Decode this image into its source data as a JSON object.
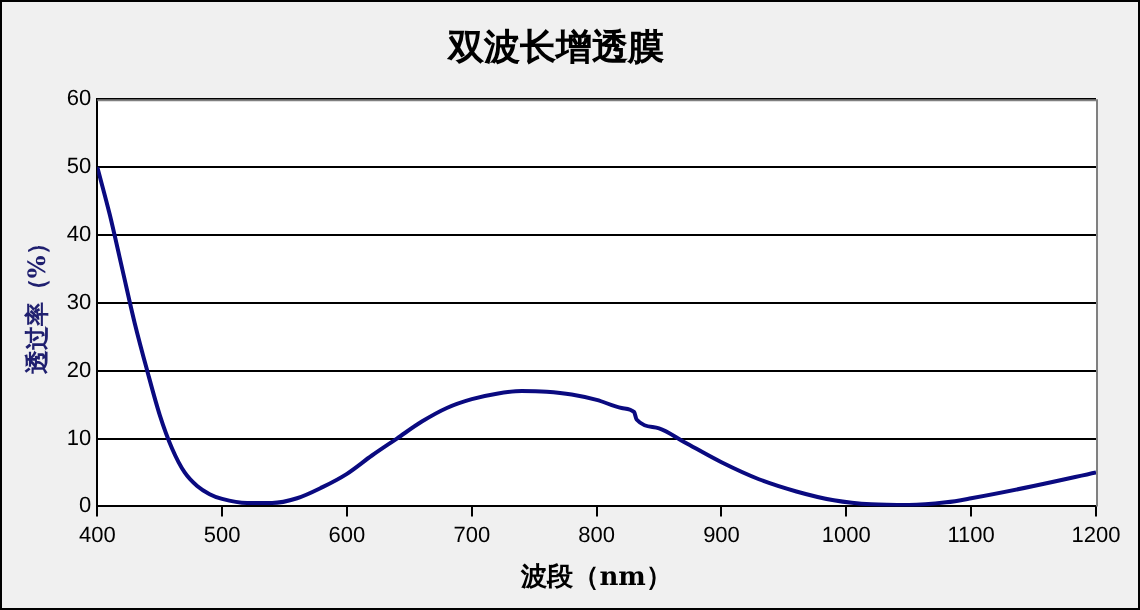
{
  "chart_data": {
    "type": "line",
    "title": "双波长增透膜",
    "xlabel": "波段（nm）",
    "ylabel": "透过率（%）",
    "x": [
      400,
      410,
      420,
      430,
      440,
      450,
      460,
      470,
      480,
      490,
      500,
      520,
      540,
      560,
      580,
      600,
      620,
      640,
      660,
      680,
      700,
      720,
      740,
      760,
      780,
      800,
      820,
      830,
      832,
      850,
      870,
      900,
      930,
      960,
      990,
      1020,
      1050,
      1080,
      1100,
      1150,
      1200
    ],
    "series": [
      {
        "color": "#0a0a80",
        "values": [
          50,
          43,
          35,
          27,
          20,
          13.5,
          8.5,
          5,
          3,
          1.8,
          1.1,
          0.5,
          0.5,
          1.2,
          2.8,
          4.8,
          7.5,
          10,
          12.5,
          14.5,
          15.8,
          16.6,
          17,
          16.9,
          16.5,
          15.7,
          14.5,
          13.9,
          12.8,
          11.5,
          9.5,
          6.5,
          4,
          2.2,
          0.9,
          0.3,
          0.2,
          0.6,
          1.2,
          3,
          5
        ]
      }
    ],
    "xlim": [
      400,
      1200
    ],
    "xticks": [
      400,
      500,
      600,
      700,
      800,
      900,
      1000,
      1100,
      1200
    ],
    "ylim": [
      0,
      60
    ],
    "yticks": [
      0,
      10,
      20,
      30,
      40,
      50,
      60
    ],
    "grid": "y",
    "legend": false,
    "marker": "none",
    "line_style": "solid"
  }
}
